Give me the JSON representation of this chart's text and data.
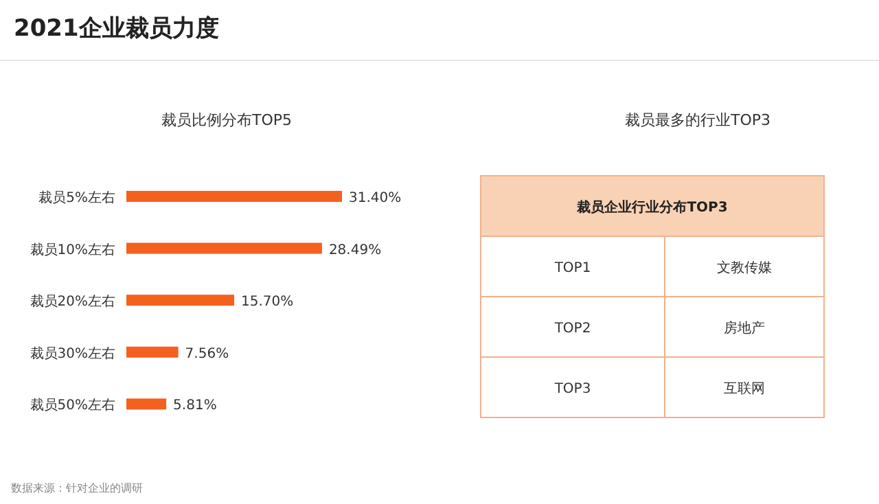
{
  "chart_data": [
    {
      "type": "bar",
      "orientation": "horizontal",
      "title": "2021企业裁员力度",
      "subtitle": "裁员比例分布TOP5",
      "categories": [
        "裁员5%左右",
        "裁员10%左右",
        "裁员20%左右",
        "裁员30%左右",
        "裁员50%左右"
      ],
      "values": [
        31.4,
        28.49,
        15.7,
        7.56,
        5.81
      ],
      "value_labels": [
        "31.40%",
        "28.49%",
        "15.70%",
        "7.56%",
        "5.81%"
      ],
      "color": "#f4601e",
      "annotations": [
        "数据来源：针对企业的调研"
      ]
    },
    {
      "type": "other",
      "title": "裁员最多的行业TOP3",
      "subtitle": "裁员企业行业分布TOP3",
      "categories": [
        "TOP1",
        "TOP2",
        "TOP3"
      ],
      "annotations": [
        "文教传媒",
        "房地产",
        "互联网"
      ]
    }
  ]
}
